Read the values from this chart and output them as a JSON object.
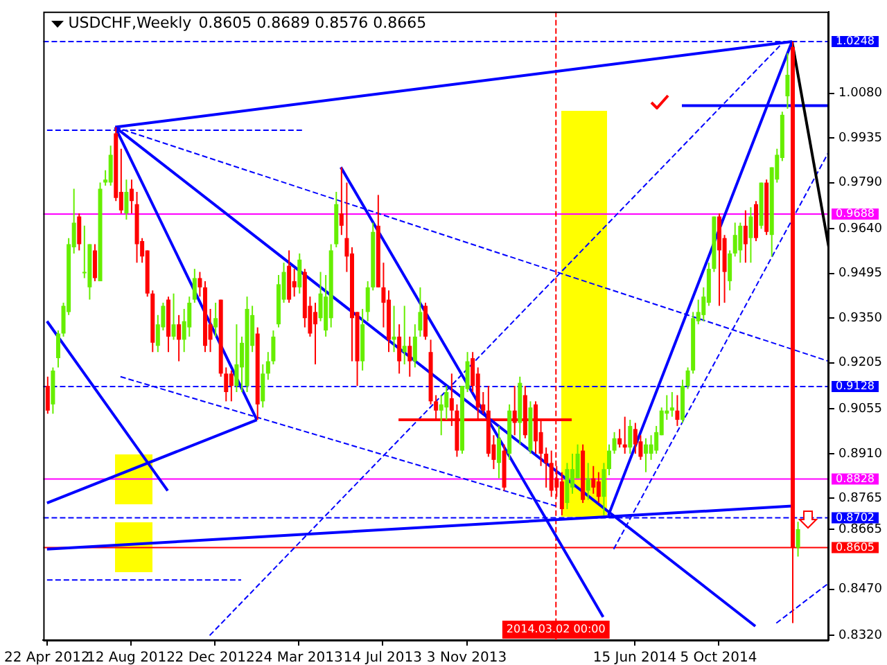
{
  "chart_data": {
    "type": "candlestick",
    "title": "USDCHF,Weekly",
    "subtitle": "0.8605 0.8689 0.8576 0.8665",
    "x": [
      "2012-04-22",
      "2012-04-29",
      "2012-05-06",
      "2012-05-13",
      "2012-05-20",
      "2012-05-27",
      "2012-06-03",
      "2012-06-10",
      "2012-06-17",
      "2012-06-24",
      "2012-07-01",
      "2012-07-08",
      "2012-07-15",
      "2012-07-22",
      "2012-07-29",
      "2012-08-05",
      "2012-08-12",
      "2012-08-19",
      "2012-08-26",
      "2012-09-02",
      "2012-09-09",
      "2012-09-16",
      "2012-09-23",
      "2012-09-30",
      "2012-10-07",
      "2012-10-14",
      "2012-10-21",
      "2012-10-28",
      "2012-11-04",
      "2012-11-11",
      "2012-11-18",
      "2012-11-25",
      "2012-12-02",
      "2012-12-09",
      "2012-12-16",
      "2012-12-23",
      "2012-12-30",
      "2013-01-06",
      "2013-01-13",
      "2013-01-20",
      "2013-01-27",
      "2013-02-03",
      "2013-02-10",
      "2013-02-17",
      "2013-02-24",
      "2013-03-03",
      "2013-03-10",
      "2013-03-17",
      "2013-03-24",
      "2013-03-31",
      "2013-04-07",
      "2013-04-14",
      "2013-04-21",
      "2013-04-28",
      "2013-05-05",
      "2013-05-12",
      "2013-05-19",
      "2013-05-26",
      "2013-06-02",
      "2013-06-09",
      "2013-06-16",
      "2013-06-23",
      "2013-06-30",
      "2013-07-07",
      "2013-07-14",
      "2013-07-21",
      "2013-07-28",
      "2013-08-04",
      "2013-08-11",
      "2013-08-18",
      "2013-08-25",
      "2013-09-01",
      "2013-09-08",
      "2013-09-15",
      "2013-09-22",
      "2013-09-29",
      "2013-10-06",
      "2013-10-13",
      "2013-10-20",
      "2013-10-27",
      "2013-11-03",
      "2013-11-10",
      "2013-11-17",
      "2013-11-24",
      "2013-12-01",
      "2013-12-08",
      "2013-12-15",
      "2013-12-22",
      "2013-12-29",
      "2014-01-05",
      "2014-01-12",
      "2014-01-19",
      "2014-01-26",
      "2014-02-02",
      "2014-02-09",
      "2014-02-16",
      "2014-02-23",
      "2014-03-02",
      "2014-03-09",
      "2014-03-16",
      "2014-03-23",
      "2014-03-30",
      "2014-04-06",
      "2014-04-13",
      "2014-04-20",
      "2014-04-27",
      "2014-05-04",
      "2014-05-11",
      "2014-05-18",
      "2014-05-25",
      "2014-06-01",
      "2014-06-08",
      "2014-06-15",
      "2014-06-22",
      "2014-06-29",
      "2014-07-06",
      "2014-07-13",
      "2014-07-20",
      "2014-07-27",
      "2014-08-03",
      "2014-08-10",
      "2014-08-17",
      "2014-08-24",
      "2014-08-31",
      "2014-09-07",
      "2014-09-14",
      "2014-09-21",
      "2014-09-28",
      "2014-10-05",
      "2014-10-12",
      "2014-10-19",
      "2014-10-26",
      "2014-11-02",
      "2014-11-09",
      "2014-11-16",
      "2014-11-23",
      "2014-11-30",
      "2014-12-07",
      "2014-12-14",
      "2014-12-21",
      "2014-12-28",
      "2015-01-04",
      "2015-01-11",
      "2015-01-18"
    ],
    "ohlc": [
      [
        0.913,
        0.916,
        0.904,
        0.905
      ],
      [
        0.907,
        0.919,
        0.904,
        0.918
      ],
      [
        0.922,
        0.931,
        0.919,
        0.93
      ],
      [
        0.93,
        0.94,
        0.929,
        0.939
      ],
      [
        0.937,
        0.961,
        0.936,
        0.959
      ],
      [
        0.958,
        0.977,
        0.956,
        0.966
      ],
      [
        0.968,
        0.969,
        0.957,
        0.959
      ],
      [
        0.95,
        0.965,
        0.948,
        0.95
      ],
      [
        0.945,
        0.959,
        0.941,
        0.959
      ],
      [
        0.957,
        0.959,
        0.947,
        0.948
      ],
      [
        0.947,
        0.979,
        0.947,
        0.977
      ],
      [
        0.979,
        0.983,
        0.978,
        0.98
      ],
      [
        0.979,
        0.991,
        0.978,
        0.988
      ],
      [
        0.995,
        0.997,
        0.973,
        0.974
      ],
      [
        0.976,
        0.99,
        0.969,
        0.97
      ],
      [
        0.969,
        0.98,
        0.967,
        0.976
      ],
      [
        0.977,
        0.98,
        0.969,
        0.973
      ],
      [
        0.972,
        0.976,
        0.953,
        0.959
      ],
      [
        0.96,
        0.961,
        0.953,
        0.955
      ],
      [
        0.957,
        0.957,
        0.942,
        0.943
      ],
      [
        0.943,
        0.944,
        0.924,
        0.927
      ],
      [
        0.926,
        0.936,
        0.924,
        0.933
      ],
      [
        0.932,
        0.94,
        0.931,
        0.939
      ],
      [
        0.941,
        0.942,
        0.924,
        0.929
      ],
      [
        0.929,
        0.943,
        0.928,
        0.933
      ],
      [
        0.933,
        0.936,
        0.921,
        0.928
      ],
      [
        0.928,
        0.938,
        0.924,
        0.934
      ],
      [
        0.932,
        0.942,
        0.929,
        0.94
      ],
      [
        0.941,
        0.951,
        0.94,
        0.948
      ],
      [
        0.948,
        0.95,
        0.942,
        0.945
      ],
      [
        0.945,
        0.947,
        0.924,
        0.926
      ],
      [
        0.933,
        0.938,
        0.924,
        0.928
      ],
      [
        0.932,
        0.94,
        0.929,
        0.935
      ],
      [
        0.941,
        0.941,
        0.916,
        0.917
      ],
      [
        0.917,
        0.919,
        0.908,
        0.911
      ],
      [
        0.917,
        0.918,
        0.908,
        0.913
      ],
      [
        0.913,
        0.933,
        0.911,
        0.92
      ],
      [
        0.919,
        0.929,
        0.911,
        0.927
      ],
      [
        0.913,
        0.942,
        0.911,
        0.938
      ],
      [
        0.926,
        0.939,
        0.924,
        0.936
      ],
      [
        0.93,
        0.932,
        0.902,
        0.907
      ],
      [
        0.908,
        0.92,
        0.906,
        0.917
      ],
      [
        0.917,
        0.924,
        0.915,
        0.921
      ],
      [
        0.921,
        0.931,
        0.92,
        0.929
      ],
      [
        0.933,
        0.949,
        0.932,
        0.946
      ],
      [
        0.941,
        0.953,
        0.94,
        0.95
      ],
      [
        0.952,
        0.957,
        0.94,
        0.941
      ],
      [
        0.947,
        0.951,
        0.942,
        0.945
      ],
      [
        0.945,
        0.956,
        0.943,
        0.954
      ],
      [
        0.95,
        0.951,
        0.932,
        0.935
      ],
      [
        0.939,
        0.942,
        0.929,
        0.93
      ],
      [
        0.937,
        0.94,
        0.92,
        0.933
      ],
      [
        0.935,
        0.95,
        0.934,
        0.943
      ],
      [
        0.931,
        0.949,
        0.929,
        0.942
      ],
      [
        0.935,
        0.959,
        0.932,
        0.957
      ],
      [
        0.959,
        0.976,
        0.958,
        0.972
      ],
      [
        0.969,
        0.984,
        0.962,
        0.965
      ],
      [
        0.961,
        0.979,
        0.95,
        0.955
      ],
      [
        0.956,
        0.958,
        0.921,
        0.935
      ],
      [
        0.937,
        0.937,
        0.913,
        0.921
      ],
      [
        0.921,
        0.938,
        0.918,
        0.933
      ],
      [
        0.937,
        0.947,
        0.934,
        0.945
      ],
      [
        0.945,
        0.966,
        0.944,
        0.963
      ],
      [
        0.965,
        0.975,
        0.945,
        0.945
      ],
      [
        0.945,
        0.953,
        0.932,
        0.94
      ],
      [
        0.941,
        0.944,
        0.924,
        0.928
      ],
      [
        0.928,
        0.939,
        0.924,
        0.929
      ],
      [
        0.929,
        0.933,
        0.917,
        0.921
      ],
      [
        0.924,
        0.939,
        0.92,
        0.926
      ],
      [
        0.926,
        0.929,
        0.916,
        0.921
      ],
      [
        0.921,
        0.933,
        0.919,
        0.929
      ],
      [
        0.931,
        0.945,
        0.929,
        0.937
      ],
      [
        0.939,
        0.94,
        0.928,
        0.929
      ],
      [
        0.924,
        0.928,
        0.907,
        0.908
      ],
      [
        0.908,
        0.91,
        0.902,
        0.905
      ],
      [
        0.905,
        0.91,
        0.897,
        0.907
      ],
      [
        0.906,
        0.913,
        0.902,
        0.911
      ],
      [
        0.909,
        0.917,
        0.9,
        0.905
      ],
      [
        0.905,
        0.907,
        0.89,
        0.892
      ],
      [
        0.892,
        0.913,
        0.891,
        0.913
      ],
      [
        0.912,
        0.924,
        0.911,
        0.921
      ],
      [
        0.922,
        0.924,
        0.911,
        0.913
      ],
      [
        0.917,
        0.919,
        0.902,
        0.906
      ],
      [
        0.907,
        0.911,
        0.904,
        0.905
      ],
      [
        0.905,
        0.913,
        0.89,
        0.891
      ],
      [
        0.894,
        0.897,
        0.886,
        0.889
      ],
      [
        0.888,
        0.9,
        0.883,
        0.896
      ],
      [
        0.892,
        0.894,
        0.879,
        0.88
      ],
      [
        0.891,
        0.907,
        0.889,
        0.905
      ],
      [
        0.905,
        0.913,
        0.897,
        0.901
      ],
      [
        0.901,
        0.916,
        0.894,
        0.914
      ],
      [
        0.91,
        0.913,
        0.896,
        0.897
      ],
      [
        0.892,
        0.908,
        0.891,
        0.906
      ],
      [
        0.907,
        0.908,
        0.891,
        0.895
      ],
      [
        0.898,
        0.902,
        0.887,
        0.891
      ],
      [
        0.891,
        0.893,
        0.88,
        0.888
      ],
      [
        0.888,
        0.892,
        0.877,
        0.879
      ],
      [
        0.883,
        0.887,
        0.877,
        0.88
      ],
      [
        0.882,
        0.885,
        0.871,
        0.873
      ],
      [
        0.875,
        0.888,
        0.873,
        0.886
      ],
      [
        0.88,
        0.891,
        0.878,
        0.886
      ],
      [
        0.883,
        0.894,
        0.883,
        0.891
      ],
      [
        0.892,
        0.894,
        0.875,
        0.876
      ],
      [
        0.879,
        0.888,
        0.876,
        0.883
      ],
      [
        0.883,
        0.887,
        0.878,
        0.88
      ],
      [
        0.882,
        0.885,
        0.875,
        0.877
      ],
      [
        0.877,
        0.888,
        0.871,
        0.886
      ],
      [
        0.886,
        0.894,
        0.884,
        0.892
      ],
      [
        0.892,
        0.898,
        0.891,
        0.896
      ],
      [
        0.896,
        0.899,
        0.893,
        0.894
      ],
      [
        0.894,
        0.903,
        0.891,
        0.893
      ],
      [
        0.893,
        0.902,
        0.891,
        0.9
      ],
      [
        0.899,
        0.901,
        0.891,
        0.894
      ],
      [
        0.895,
        0.897,
        0.889,
        0.89
      ],
      [
        0.891,
        0.896,
        0.885,
        0.894
      ],
      [
        0.891,
        0.897,
        0.889,
        0.894
      ],
      [
        0.892,
        0.9,
        0.891,
        0.898
      ],
      [
        0.897,
        0.906,
        0.897,
        0.905
      ],
      [
        0.904,
        0.91,
        0.902,
        0.905
      ],
      [
        0.905,
        0.911,
        0.903,
        0.906
      ],
      [
        0.905,
        0.91,
        0.9,
        0.902
      ],
      [
        0.902,
        0.915,
        0.901,
        0.913
      ],
      [
        0.913,
        0.919,
        0.912,
        0.918
      ],
      [
        0.918,
        0.937,
        0.917,
        0.935
      ],
      [
        0.934,
        0.941,
        0.933,
        0.937
      ],
      [
        0.936,
        0.945,
        0.934,
        0.942
      ],
      [
        0.94,
        0.953,
        0.939,
        0.951
      ],
      [
        0.951,
        0.968,
        0.95,
        0.968
      ],
      [
        0.968,
        0.969,
        0.939,
        0.957
      ],
      [
        0.961,
        0.962,
        0.94,
        0.95
      ],
      [
        0.947,
        0.957,
        0.944,
        0.956
      ],
      [
        0.956,
        0.966,
        0.955,
        0.962
      ],
      [
        0.957,
        0.966,
        0.953,
        0.965
      ],
      [
        0.965,
        0.97,
        0.953,
        0.959
      ],
      [
        0.961,
        0.971,
        0.953,
        0.968
      ],
      [
        0.972,
        0.973,
        0.96,
        0.961
      ],
      [
        0.965,
        0.979,
        0.964,
        0.979
      ],
      [
        0.979,
        0.98,
        0.962,
        0.963
      ],
      [
        0.962,
        0.984,
        0.955,
        0.984
      ],
      [
        0.98,
        0.99,
        0.979,
        0.988
      ],
      [
        0.987,
        1.002,
        0.986,
        1.001
      ],
      [
        1.007,
        1.021,
        1.003,
        1.014
      ],
      [
        1.023,
        1.0248,
        0.836,
        0.8605
      ],
      [
        0.8605,
        0.8689,
        0.8576,
        0.8665
      ]
    ],
    "series": [
      {
        "type": "line",
        "x": [
          "2012-07-22",
          "2015-01-11"
        ],
        "values": [
          0.997,
          1.0248
        ],
        "color": "#0000ff",
        "line_style": "solid"
      },
      {
        "type": "line",
        "x": [
          "2012-07-22",
          "2014-11-23"
        ],
        "values": [
          0.997,
          0.835
        ],
        "color": "#0000ff",
        "line_style": "solid"
      },
      {
        "type": "line",
        "x": [
          "2012-04-22",
          "2013-01-27"
        ],
        "values": [
          0.875,
          0.902
        ],
        "color": "#0000ff",
        "line_style": "solid"
      },
      {
        "type": "line",
        "x": [
          "2012-04-22",
          "2015-01-11"
        ],
        "values": [
          0.86,
          0.874
        ],
        "color": "#0000ff",
        "line_style": "solid"
      },
      {
        "type": "line",
        "x": [
          "2012-07-22",
          "2013-01-27"
        ],
        "values": [
          0.997,
          0.902
        ],
        "color": "#0000ff",
        "line_style": "solid"
      },
      {
        "type": "line",
        "x": [
          "2012-04-22",
          "2012-09-30"
        ],
        "values": [
          0.934,
          0.879
        ],
        "color": "#0000ff",
        "line_style": "solid"
      },
      {
        "type": "line",
        "x": [
          "2013-05-19",
          "2014-05-04"
        ],
        "values": [
          0.984,
          0.838
        ],
        "color": "#0000ff",
        "line_style": "solid"
      },
      {
        "type": "line",
        "x": [
          "2014-05-11",
          "2015-01-11"
        ],
        "values": [
          0.871,
          1.0248
        ],
        "color": "#0000ff",
        "line_style": "solid"
      },
      {
        "type": "line",
        "x": [
          "2015-01-11",
          "2015-03-01"
        ],
        "values": [
          1.0248,
          0.958
        ],
        "color": "#000000",
        "line_style": "solid"
      },
      {
        "type": "line",
        "x": [
          "2014-08-17",
          "2015-03-01"
        ],
        "values": [
          1.004,
          1.004
        ],
        "color": "#0000ff",
        "line_style": "solid"
      },
      {
        "type": "line",
        "x": [
          "2013-08-04",
          "2014-03-23"
        ],
        "values": [
          0.902,
          0.902
        ],
        "color": "#ff0000",
        "line_style": "solid"
      },
      {
        "type": "line",
        "x": [
          "2012-04-22",
          "2013-03-31"
        ],
        "values": [
          0.996,
          0.996
        ],
        "color": "#0000ff",
        "line_style": "dashed"
      },
      {
        "type": "line",
        "x": [
          "2012-04-22",
          "2013-01-06"
        ],
        "values": [
          0.85,
          0.85
        ],
        "color": "#0000ff",
        "line_style": "dashed"
      },
      {
        "type": "line",
        "x": [
          "2012-07-22",
          "2015-03-01"
        ],
        "values": [
          0.997,
          0.921
        ],
        "color": "#0000ff",
        "line_style": "dashed"
      },
      {
        "type": "line",
        "x": [
          "2012-07-29",
          "2014-03-02"
        ],
        "values": [
          0.916,
          0.874
        ],
        "color": "#0000ff",
        "line_style": "dashed"
      },
      {
        "type": "line",
        "x": [
          "2012-11-25",
          "2014-12-28"
        ],
        "values": [
          0.832,
          1.024
        ],
        "color": "#0000ff",
        "line_style": "dashed"
      },
      {
        "type": "line",
        "x": [
          "2014-05-18",
          "2015-03-01"
        ],
        "values": [
          0.86,
          0.989
        ],
        "color": "#0000ff",
        "line_style": "dashed"
      },
      {
        "type": "line",
        "x": [
          "2014-12-21",
          "2015-03-01"
        ],
        "values": [
          0.836,
          0.849
        ],
        "color": "#0000ff",
        "line_style": "dashed"
      }
    ],
    "ref_lines": [
      {
        "axis": "y",
        "value": 1.0248,
        "label": "1.0248",
        "color": "#0000ff",
        "line_style": "dashed"
      },
      {
        "axis": "y",
        "value": 0.9688,
        "label": "0.9688",
        "color": "#ff00ff",
        "line_style": "solid"
      },
      {
        "axis": "y",
        "value": 0.9128,
        "label": "0.9128",
        "color": "#0000ff",
        "line_style": "dashed"
      },
      {
        "axis": "y",
        "value": 0.8828,
        "label": "0.8828",
        "color": "#ff00ff",
        "line_style": "solid"
      },
      {
        "axis": "y",
        "value": 0.8702,
        "label": "0.8702",
        "color": "#0000ff",
        "line_style": "dashed"
      },
      {
        "axis": "y",
        "value": 0.8605,
        "label": "0.8605",
        "color": "#ff0000",
        "line_style": "solid"
      },
      {
        "axis": "x",
        "value": "2014-03-02",
        "label": "2014.03.02 00:00",
        "color": "#ff0000",
        "line_style": "dashed"
      }
    ],
    "xlim": [
      "2012-04-17",
      "2015-03-01"
    ],
    "xticks": [
      {
        "value": "2012-04-22",
        "label": "22 Apr 2012"
      },
      {
        "value": "2012-08-12",
        "label": "12 Aug 2012"
      },
      {
        "value": "2012-12-02",
        "label": "2 Dec 2012"
      },
      {
        "value": "2013-03-24",
        "label": "24 Mar 2013"
      },
      {
        "value": "2013-07-14",
        "label": "14 Jul 2013"
      },
      {
        "value": "2013-11-03",
        "label": "3 Nov 2013"
      },
      {
        "value": "2014-06-15",
        "label": "15 Jun 2014"
      },
      {
        "value": "2014-10-05",
        "label": "5 Oct 2014"
      }
    ],
    "ylim": [
      0.8305,
      1.0345
    ],
    "yticks": [
      {
        "value": 1.008,
        "label": "1.0080"
      },
      0.9935,
      {
        "value": 0.979,
        "label": "0.9790"
      },
      {
        "value": 0.964,
        "label": "0.9640"
      },
      0.9495,
      {
        "value": 0.935,
        "label": "0.9350"
      },
      0.9205,
      0.9055,
      {
        "value": 0.891,
        "label": "0.8910"
      },
      0.8765,
      0.8665,
      {
        "value": 0.847,
        "label": "0.8470"
      },
      {
        "value": 0.832,
        "label": "0.8320"
      }
    ]
  }
}
